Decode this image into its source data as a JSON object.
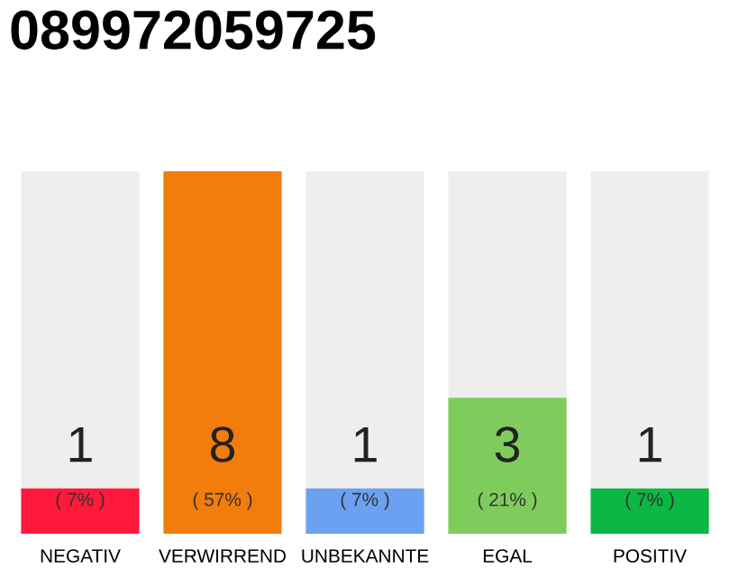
{
  "chart_data": {
    "type": "bar",
    "title": "089972059725",
    "categories": [
      "NEGATIV",
      "VERWIRREND",
      "UNBEKANNTE",
      "EGAL",
      "POSITIV"
    ],
    "values": [
      1,
      8,
      1,
      3,
      1
    ],
    "colors": [
      "#ff1a3c",
      "#f27c0c",
      "#6ca0f0",
      "#7fcc5c",
      "#0cb843"
    ],
    "ylim": [
      0,
      8
    ],
    "data_labels": true,
    "annotations": [
      "( 7% )",
      "( 57% )",
      "( 7% )",
      "( 21% )",
      "( 7% )"
    ],
    "grid": false,
    "legend": false
  }
}
